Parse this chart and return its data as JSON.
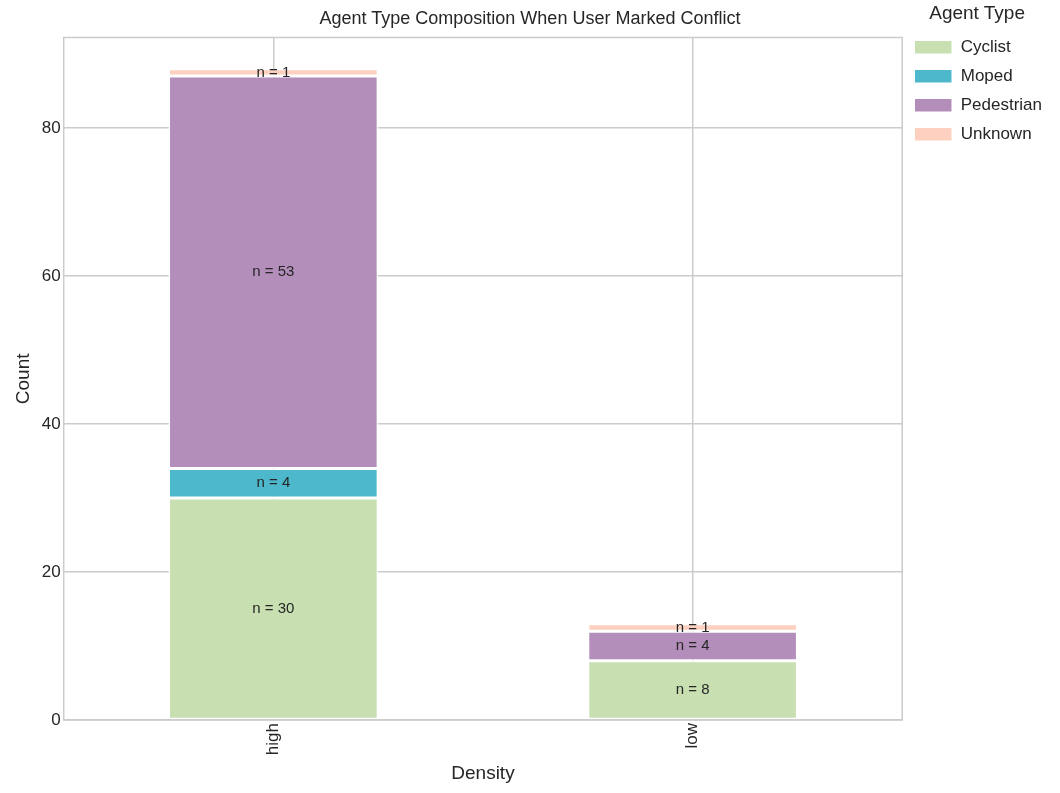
{
  "chart_data": {
    "type": "bar",
    "title": "Agent Type Composition When User Marked Conflict",
    "xlabel": "Density",
    "ylabel": "Count",
    "legend_title": "Agent Type",
    "categories": [
      "high",
      "low"
    ],
    "series": [
      {
        "name": "Cyclist",
        "color": "#c7dfb1",
        "values": [
          30,
          8
        ],
        "value_labels": [
          "n = 30",
          "n = 8"
        ]
      },
      {
        "name": "Moped",
        "color": "#4db8cc",
        "values": [
          4,
          0
        ],
        "value_labels": [
          "n = 4",
          null
        ]
      },
      {
        "name": "Pedestrian",
        "color": "#b48eba",
        "values": [
          53,
          4
        ],
        "value_labels": [
          "n = 53",
          "n = 4"
        ]
      },
      {
        "name": "Unknown",
        "color": "#fdd0bf",
        "values": [
          1,
          1
        ],
        "value_labels": [
          "n = 1",
          "n = 1"
        ]
      }
    ],
    "stacked": true,
    "ylim": [
      0,
      92.2
    ],
    "yticks": [
      0,
      20,
      40,
      60,
      80
    ],
    "grid": true,
    "legend": "top right"
  }
}
